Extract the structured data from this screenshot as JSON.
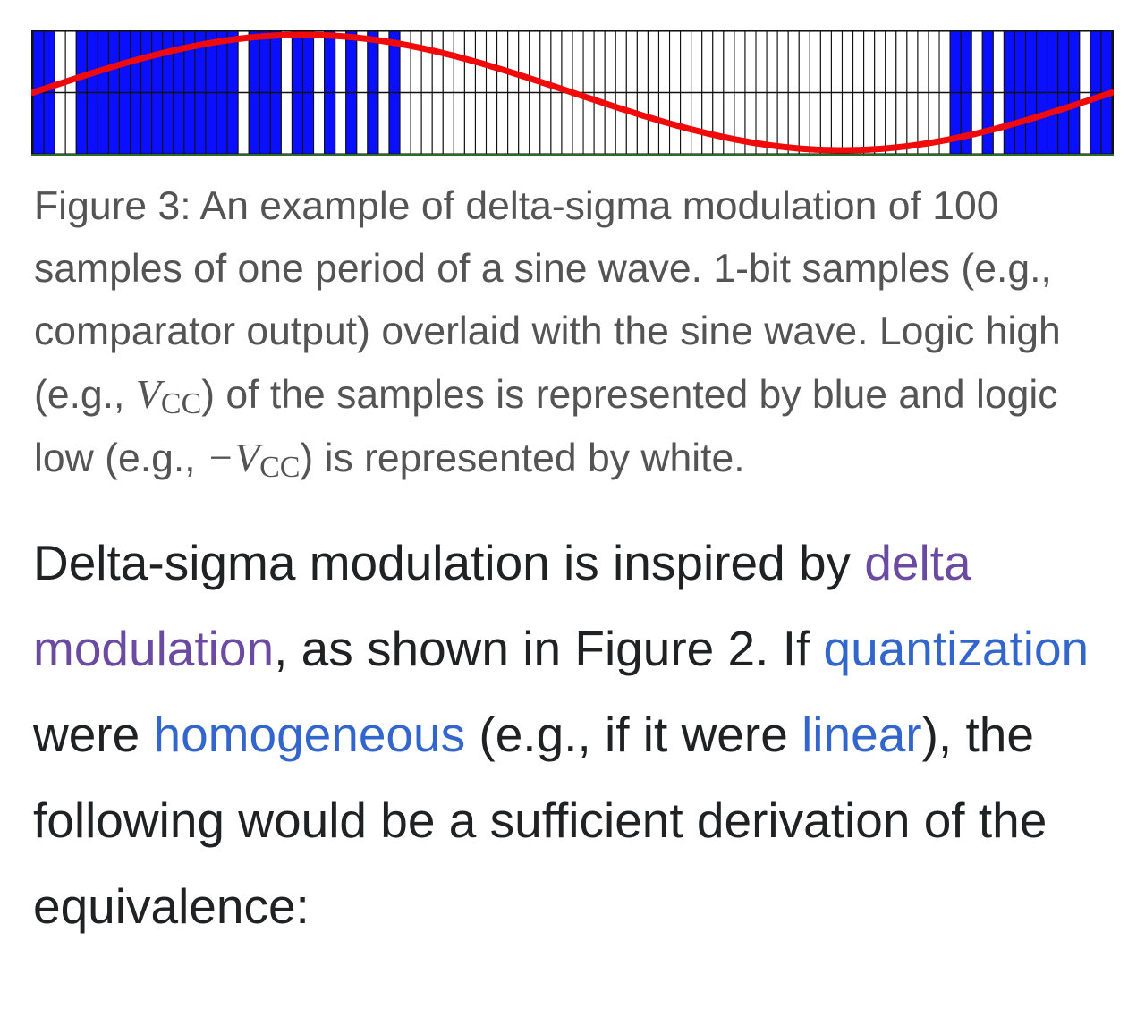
{
  "figure": {
    "colors": {
      "high": "#0a10ff",
      "low": "#ffffff",
      "signal": "#f00a0a",
      "grid": "#111111",
      "baseline": "#2a6b2a"
    },
    "chart_data": {
      "type": "line",
      "title": "",
      "xlabel": "",
      "ylabel": "",
      "sample_count": 100,
      "signal": "sine, one period",
      "bits": "1100111111111111111011101101010101000000000000000000000000000000000000000000000000000110101111111011",
      "sine": {
        "period_samples": 100,
        "phase_start_deg": 0,
        "amplitude": 1
      },
      "ylim": [
        -1,
        1
      ]
    }
  },
  "caption": {
    "part1": "Figure 3: An example of delta-sigma modulation of 100 samples of one period of a sine wave. 1-bit samples (e.g., comparator output) overlaid with the sine wave. Logic high (e.g., ",
    "vcc_v": "V",
    "vcc_sub": "CC",
    "part2": ") of the samples is represented by blue and logic low (e.g., ",
    "neg_sign": "−",
    "part3": ") is represented by white."
  },
  "paragraph": {
    "t1": "Delta-sigma modulation is inspired by ",
    "link_delta_modulation": "delta modulation",
    "t2": ", as shown in Figure 2. If ",
    "link_quantization": "quantization",
    "t3": " were ",
    "link_homogeneous": "homogeneous",
    "t4": " (e.g., if it were ",
    "link_linear": "linear",
    "t5": "), the following would be a sufficient derivation of the equivalence:"
  }
}
